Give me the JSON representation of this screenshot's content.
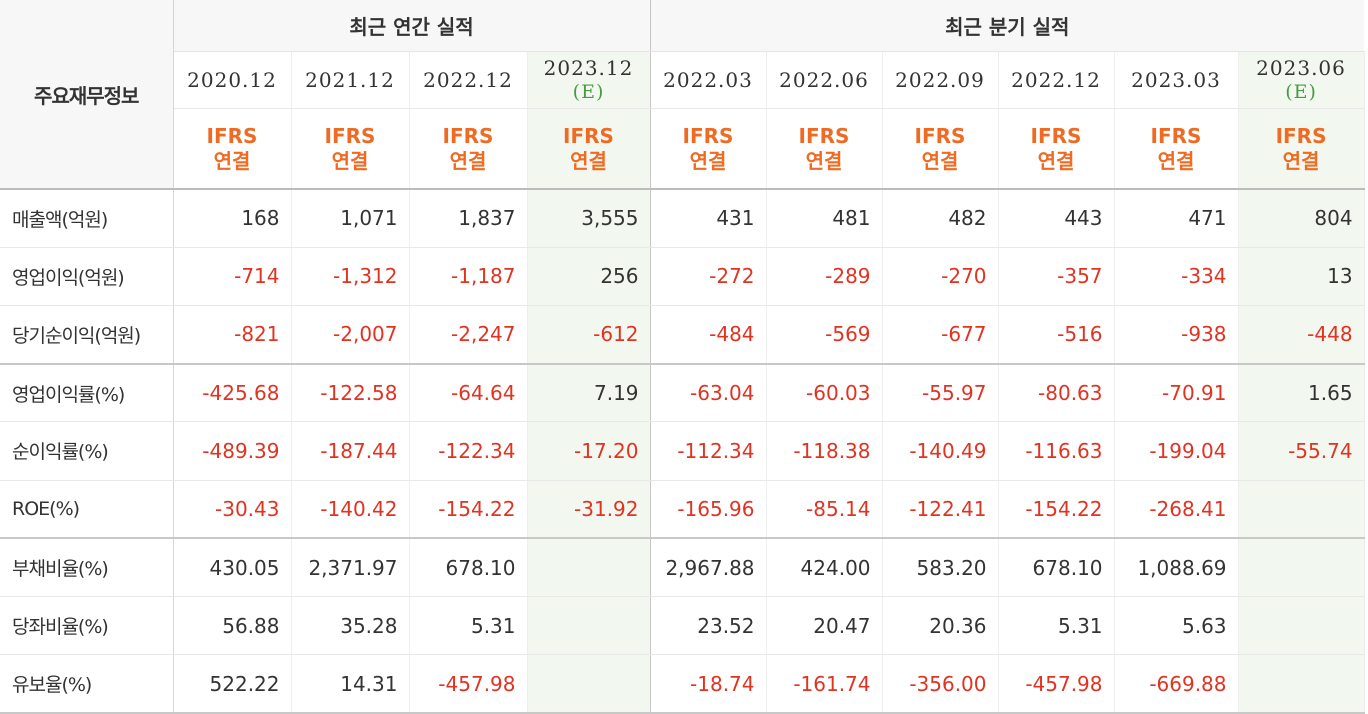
{
  "table": {
    "corner_label": "주요재무정보",
    "groups": {
      "annual": "최근 연간 실적",
      "quarterly": "최근 분기 실적"
    },
    "periods": [
      {
        "label": "2020.12",
        "estimate": "",
        "basis_1": "IFRS",
        "basis_2": "연결"
      },
      {
        "label": "2021.12",
        "estimate": "",
        "basis_1": "IFRS",
        "basis_2": "연결"
      },
      {
        "label": "2022.12",
        "estimate": "",
        "basis_1": "IFRS",
        "basis_2": "연결"
      },
      {
        "label": "2023.12",
        "estimate": "(E)",
        "basis_1": "IFRS",
        "basis_2": "연결"
      },
      {
        "label": "2022.03",
        "estimate": "",
        "basis_1": "IFRS",
        "basis_2": "연결"
      },
      {
        "label": "2022.06",
        "estimate": "",
        "basis_1": "IFRS",
        "basis_2": "연결"
      },
      {
        "label": "2022.09",
        "estimate": "",
        "basis_1": "IFRS",
        "basis_2": "연결"
      },
      {
        "label": "2022.12",
        "estimate": "",
        "basis_1": "IFRS",
        "basis_2": "연결"
      },
      {
        "label": "2023.03",
        "estimate": "",
        "basis_1": "IFRS",
        "basis_2": "연결"
      },
      {
        "label": "2023.06",
        "estimate": "(E)",
        "basis_1": "IFRS",
        "basis_2": "연결"
      }
    ],
    "rows": [
      {
        "label": "매출액(억원)",
        "values": [
          "168",
          "1,071",
          "1,837",
          "3,555",
          "431",
          "481",
          "482",
          "443",
          "471",
          "804"
        ]
      },
      {
        "label": "영업이익(억원)",
        "values": [
          "-714",
          "-1,312",
          "-1,187",
          "256",
          "-272",
          "-289",
          "-270",
          "-357",
          "-334",
          "13"
        ]
      },
      {
        "label": "당기순이익(억원)",
        "values": [
          "-821",
          "-2,007",
          "-2,247",
          "-612",
          "-484",
          "-569",
          "-677",
          "-516",
          "-938",
          "-448"
        ]
      },
      {
        "label": "영업이익률(%)",
        "values": [
          "-425.68",
          "-122.58",
          "-64.64",
          "7.19",
          "-63.04",
          "-60.03",
          "-55.97",
          "-80.63",
          "-70.91",
          "1.65"
        ]
      },
      {
        "label": "순이익률(%)",
        "values": [
          "-489.39",
          "-187.44",
          "-122.34",
          "-17.20",
          "-112.34",
          "-118.38",
          "-140.49",
          "-116.63",
          "-199.04",
          "-55.74"
        ]
      },
      {
        "label": "ROE(%)",
        "values": [
          "-30.43",
          "-140.42",
          "-154.22",
          "-31.92",
          "-165.96",
          "-85.14",
          "-122.41",
          "-154.22",
          "-268.41",
          ""
        ]
      },
      {
        "label": "부채비율(%)",
        "values": [
          "430.05",
          "2,371.97",
          "678.10",
          "",
          "2,967.88",
          "424.00",
          "583.20",
          "678.10",
          "1,088.69",
          ""
        ]
      },
      {
        "label": "당좌비율(%)",
        "values": [
          "56.88",
          "35.28",
          "5.31",
          "",
          "23.52",
          "20.47",
          "20.36",
          "5.31",
          "5.63",
          ""
        ]
      },
      {
        "label": "유보율(%)",
        "values": [
          "522.22",
          "14.31",
          "-457.98",
          "",
          "-18.74",
          "-161.74",
          "-356.00",
          "-457.98",
          "-669.88",
          ""
        ]
      }
    ]
  },
  "colors": {
    "negative": "#e03322",
    "basis": "#ef6b24",
    "estimate_mark": "#4a9a44",
    "estimate_bg": "#f2f8ef",
    "header_bg": "#f7f7f7"
  }
}
